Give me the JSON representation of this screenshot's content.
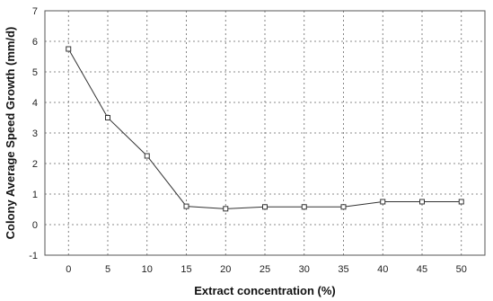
{
  "chart_data": {
    "type": "line",
    "xlabel": "Extract concentration (%)",
    "ylabel": "Colony Average Speed Growth (mm/d)",
    "x": [
      0,
      5,
      10,
      15,
      20,
      25,
      30,
      35,
      40,
      45,
      50
    ],
    "x_ticks": [
      "0",
      "5",
      "10",
      "15",
      "20",
      "25",
      "30",
      "35",
      "40",
      "45",
      "50"
    ],
    "y_ticks": [
      "-1",
      "0",
      "1",
      "2",
      "3",
      "4",
      "5",
      "6",
      "7"
    ],
    "xlim": [
      -3,
      53
    ],
    "ylim": [
      -1,
      7
    ],
    "grid": true,
    "series": [
      {
        "values": [
          5.75,
          3.5,
          2.25,
          0.6,
          0.52,
          0.58,
          0.58,
          0.58,
          0.75,
          0.75,
          0.75
        ],
        "marker": "square",
        "color": "#333333"
      }
    ]
  }
}
